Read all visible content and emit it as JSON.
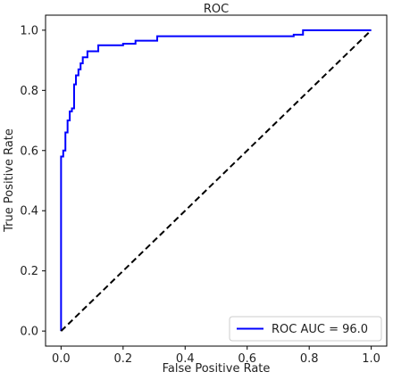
{
  "chart_data": {
    "type": "line",
    "title": "ROC",
    "xlabel": "False Positive Rate",
    "ylabel": "True Positive Rate",
    "xlim": [
      -0.05,
      1.05
    ],
    "ylim": [
      -0.05,
      1.05
    ],
    "xticks": [
      0.0,
      0.2,
      0.4,
      0.6,
      0.8,
      1.0
    ],
    "yticks": [
      0.0,
      0.2,
      0.4,
      0.6,
      0.8,
      1.0
    ],
    "xtick_labels": [
      "0.0",
      "0.2",
      "0.4",
      "0.6",
      "0.8",
      "1.0"
    ],
    "ytick_labels": [
      "0.0",
      "0.2",
      "0.4",
      "0.6",
      "0.8",
      "1.0"
    ],
    "grid": false,
    "legend_position": "lower-right",
    "series": [
      {
        "name": "ROC AUC = 96.0",
        "color": "#0000ff",
        "style": "solid",
        "x": [
          0.0,
          0.0,
          0.007,
          0.007,
          0.014,
          0.014,
          0.021,
          0.021,
          0.028,
          0.028,
          0.035,
          0.035,
          0.042,
          0.042,
          0.048,
          0.048,
          0.056,
          0.056,
          0.063,
          0.063,
          0.07,
          0.07,
          0.085,
          0.085,
          0.12,
          0.12,
          0.2,
          0.2,
          0.24,
          0.24,
          0.31,
          0.31,
          0.75,
          0.75,
          0.78,
          0.78,
          1.0
        ],
        "y": [
          0.0,
          0.58,
          0.58,
          0.6,
          0.6,
          0.66,
          0.66,
          0.7,
          0.7,
          0.73,
          0.73,
          0.74,
          0.74,
          0.82,
          0.82,
          0.85,
          0.85,
          0.87,
          0.87,
          0.89,
          0.89,
          0.91,
          0.91,
          0.93,
          0.93,
          0.95,
          0.95,
          0.955,
          0.955,
          0.965,
          0.965,
          0.98,
          0.98,
          0.985,
          0.985,
          1.0,
          1.0
        ]
      },
      {
        "name": "",
        "color": "#000000",
        "style": "dashed",
        "x": [
          0.0,
          1.0
        ],
        "y": [
          0.0,
          1.0
        ]
      }
    ]
  }
}
